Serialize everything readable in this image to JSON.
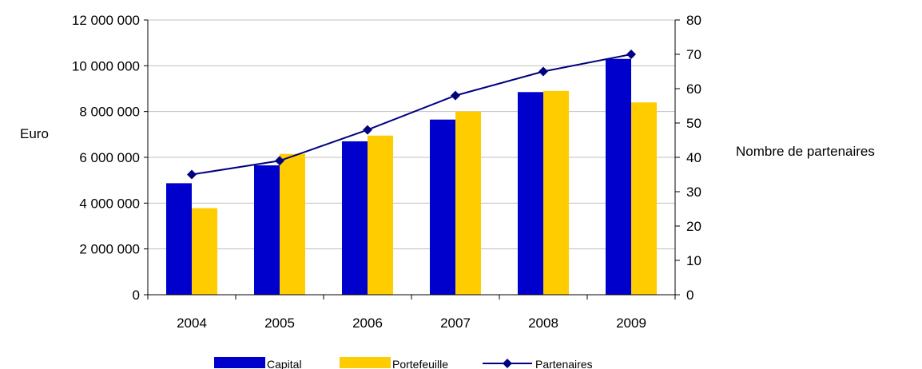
{
  "chart_data": {
    "type": "bar",
    "categories": [
      "2004",
      "2005",
      "2006",
      "2007",
      "2008",
      "2009"
    ],
    "series": [
      {
        "name": "Capital",
        "type": "bar",
        "axis": "left",
        "color": "#0000cc",
        "values": [
          4870000,
          5650000,
          6700000,
          7650000,
          8850000,
          10300000
        ]
      },
      {
        "name": "Portefeuille",
        "type": "bar",
        "axis": "left",
        "color": "#ffcc00",
        "values": [
          3780000,
          6150000,
          6950000,
          8000000,
          8900000,
          8400000
        ]
      },
      {
        "name": "Partenaires",
        "type": "line",
        "marker": "diamond",
        "axis": "right",
        "color": "#000080",
        "values": [
          35,
          39,
          48,
          58,
          65,
          70
        ]
      }
    ],
    "ylabel": "Euro",
    "y2label": "Nombre de partenaires",
    "ylim": [
      0,
      12000000
    ],
    "y2lim": [
      0,
      80
    ],
    "yticks": [
      "0",
      "2 000 000",
      "4 000 000",
      "6 000 000",
      "8 000 000",
      "10 000 000",
      "12 000 000"
    ],
    "y2ticks": [
      "0",
      "10",
      "20",
      "30",
      "40",
      "50",
      "60",
      "70",
      "80"
    ],
    "grid": true,
    "legend_position": "bottom"
  }
}
